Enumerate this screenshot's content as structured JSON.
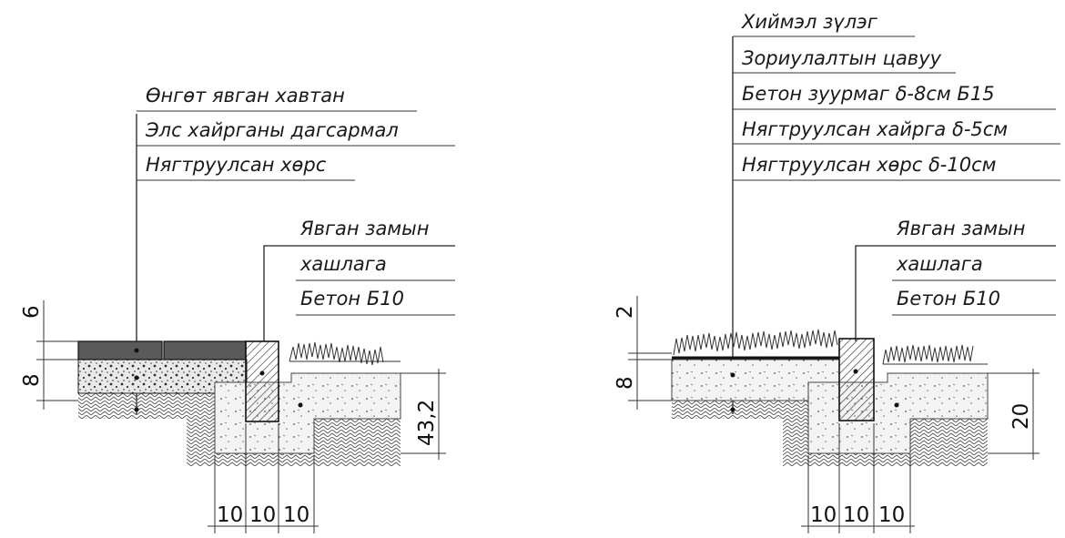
{
  "left_section": {
    "layer_labels": [
      "Өнгөт явган хавтан",
      "Элс хайрганы дагсармал",
      "Нягтруулсан хөрс"
    ],
    "curb_labels": [
      "Явган замын",
      "хашлага",
      "Бетон Б10"
    ],
    "dim_vertical": [
      "6",
      "8",
      "43,2"
    ],
    "dim_horizontal": [
      "10",
      "10",
      "10"
    ]
  },
  "right_section": {
    "layer_labels": [
      "Хиймэл зүлэг",
      "Зориулалтын цавуу",
      "Бетон зуурмаг δ-8см Б15",
      "Нягтруулсан хайрга δ-5см",
      "Нягтруулсан хөрс δ-10см"
    ],
    "curb_labels": [
      "Явган замын",
      "хашлага",
      "Бетон Б10"
    ],
    "dim_vertical": [
      "2",
      "8",
      "20"
    ],
    "dim_horizontal": [
      "10",
      "10",
      "10"
    ]
  },
  "colors": {
    "ink": "#1a1a1a",
    "paving": "#555555",
    "curb": "#8a8a8a",
    "concrete": "#f2f2f2"
  }
}
